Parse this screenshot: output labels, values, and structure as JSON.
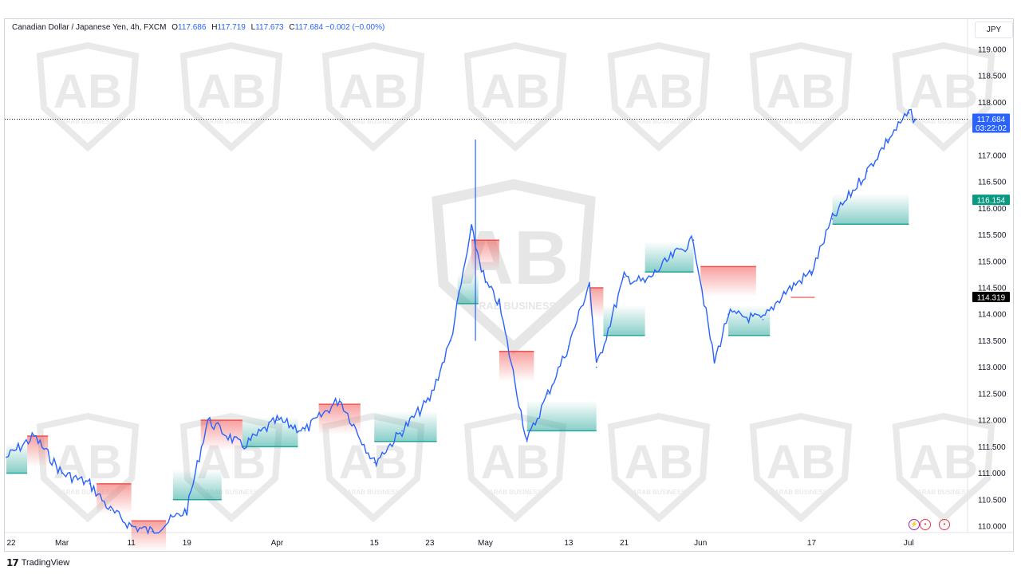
{
  "header": {
    "symbol": "Canadian Dollar / Japanese Yen, 4h, FXCM",
    "o_label": "O",
    "o": "117.686",
    "h_label": "H",
    "h": "117.719",
    "l_label": "L",
    "l": "117.673",
    "c_label": "C",
    "c": "117.684",
    "change": "−0.002 (−0.00%)"
  },
  "currency_button": "JPY",
  "price_tags": {
    "last_price": "117.684",
    "countdown": "03:22:02",
    "upper": "116.154",
    "lower": "114.319"
  },
  "brand": "TradingView",
  "watermark_text": "ARAB BUSINESS",
  "colors": {
    "candle": "#2962ff",
    "bull_band": "#26a69a",
    "bear_band": "#ef5350",
    "last_tag": "#2962ff",
    "upper_tag": "#089981",
    "lower_tag": "#000000"
  },
  "chart_data": {
    "type": "line",
    "title": "",
    "xlabel": "",
    "ylabel": "",
    "x_ticks": [
      "22",
      "Mar",
      "11",
      "19",
      "Apr",
      "15",
      "23",
      "May",
      "13",
      "21",
      "Jun",
      "17",
      "Jul"
    ],
    "y_ticks": [
      "119.000",
      "118.500",
      "118.000",
      "117.500",
      "117.000",
      "116.500",
      "116.000",
      "115.500",
      "115.000",
      "114.500",
      "114.000",
      "113.500",
      "113.000",
      "112.500",
      "112.000",
      "111.500",
      "111.000",
      "110.500",
      "110.000"
    ],
    "ylim": [
      109.9,
      119.1
    ],
    "x": [
      "Feb 22",
      "Feb 26",
      "Mar 1",
      "Mar 5",
      "Mar 8",
      "Mar 11",
      "Mar 14",
      "Mar 19",
      "Mar 22",
      "Mar 27",
      "Apr 1",
      "Apr 5",
      "Apr 10",
      "Apr 15",
      "Apr 19",
      "Apr 23",
      "Apr 26",
      "Apr 29",
      "May 1",
      "May 3",
      "May 7",
      "May 10",
      "May 13",
      "May 16",
      "May 17",
      "May 21",
      "May 24",
      "May 28",
      "May 31",
      "Jun 3",
      "Jun 5",
      "Jun 10",
      "Jun 13",
      "Jun 17",
      "Jun 20",
      "Jun 25",
      "Jun 28",
      "Jul 1",
      "Jul 2"
    ],
    "series": [
      {
        "values": [
          111.3,
          111.7,
          111.0,
          110.8,
          110.3,
          110.0,
          109.9,
          110.3,
          112.0,
          111.5,
          112.0,
          111.8,
          112.4,
          111.2,
          111.8,
          112.4,
          113.5,
          115.6,
          114.6,
          114.2,
          111.6,
          112.5,
          113.4,
          114.6,
          113.0,
          114.7,
          114.6,
          115.1,
          115.4,
          113.1,
          114.0,
          113.9,
          114.4,
          114.8,
          115.8,
          116.7,
          117.3,
          117.8,
          117.684
        ]
      }
    ],
    "bands": [
      {
        "type": "bear",
        "start": "Feb 25",
        "end": "Feb 28",
        "level": 111.7
      },
      {
        "type": "bull",
        "start": "Feb 22",
        "end": "Feb 25",
        "level": 111.0
      },
      {
        "type": "bear",
        "start": "Mar 6",
        "end": "Mar 11",
        "level": 110.8
      },
      {
        "type": "bear",
        "start": "Mar 11",
        "end": "Mar 16",
        "level": 110.1
      },
      {
        "type": "bear",
        "start": "Mar 21",
        "end": "Mar 27",
        "level": 112.0
      },
      {
        "type": "bull",
        "start": "Mar 17",
        "end": "Mar 24",
        "level": 110.5
      },
      {
        "type": "bull",
        "start": "Mar 27",
        "end": "Apr 4",
        "level": 111.5
      },
      {
        "type": "bear",
        "start": "Apr 7",
        "end": "Apr 13",
        "level": 112.3
      },
      {
        "type": "bull",
        "start": "Apr 15",
        "end": "Apr 24",
        "level": 111.6
      },
      {
        "type": "bear",
        "start": "Apr 29",
        "end": "May 3",
        "level": 115.4
      },
      {
        "type": "bear",
        "start": "May 3",
        "end": "May 8",
        "level": 113.3
      },
      {
        "type": "bull",
        "start": "Apr 27",
        "end": "Apr 30",
        "level": 114.2
      },
      {
        "type": "bull",
        "start": "May 7",
        "end": "May 17",
        "level": 111.8
      },
      {
        "type": "bear",
        "start": "May 16",
        "end": "May 18",
        "level": 114.5
      },
      {
        "type": "bull",
        "start": "May 18",
        "end": "May 24",
        "level": 113.6
      },
      {
        "type": "bull",
        "start": "May 24",
        "end": "May 31",
        "level": 114.8
      },
      {
        "type": "bear",
        "start": "Jun 1",
        "end": "Jun 9",
        "level": 114.9
      },
      {
        "type": "bull",
        "start": "Jun 5",
        "end": "Jun 11",
        "level": 113.6
      },
      {
        "type": "bull",
        "start": "Jun 20",
        "end": "Jul 1",
        "level": 115.7
      }
    ],
    "annotations": [
      "117.684",
      "03:22:02",
      "116.154",
      "114.319"
    ],
    "grid": false
  }
}
